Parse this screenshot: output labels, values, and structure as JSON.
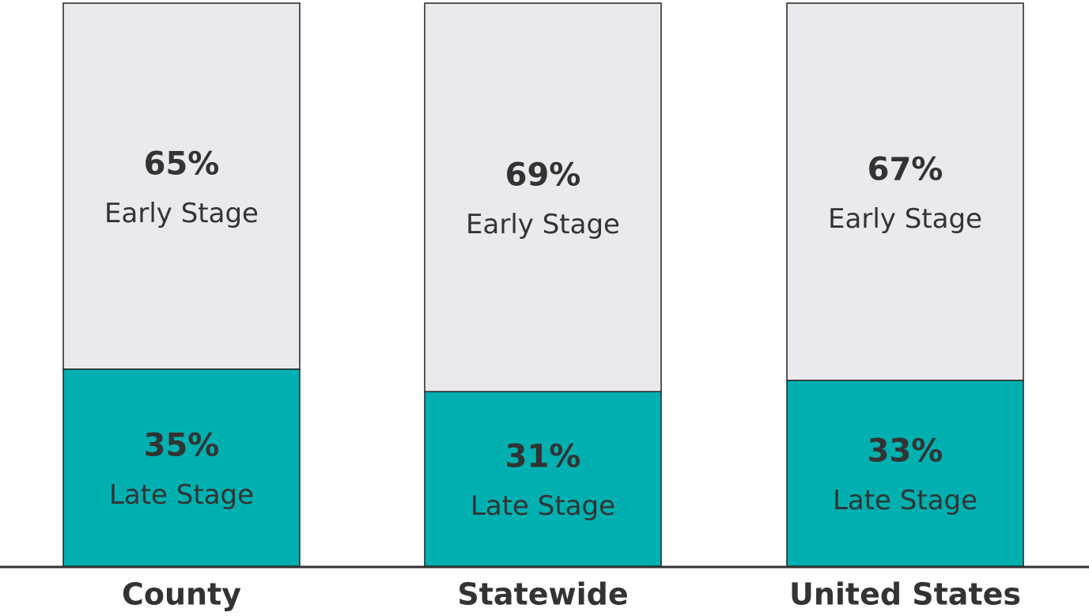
{
  "chart_data": {
    "type": "stacked_bar",
    "categories": [
      "County",
      "Statewide",
      "United States"
    ],
    "series": [
      {
        "name": "Late Stage",
        "color": "#00b0b0",
        "values": [
          35,
          31,
          33
        ],
        "value_labels": [
          "35%",
          "31%",
          "33%"
        ]
      },
      {
        "name": "Early Stage",
        "color": "#ebe9ee",
        "values": [
          65,
          69,
          67
        ],
        "value_labels": [
          "65%",
          "69%",
          "67%"
        ]
      }
    ]
  }
}
